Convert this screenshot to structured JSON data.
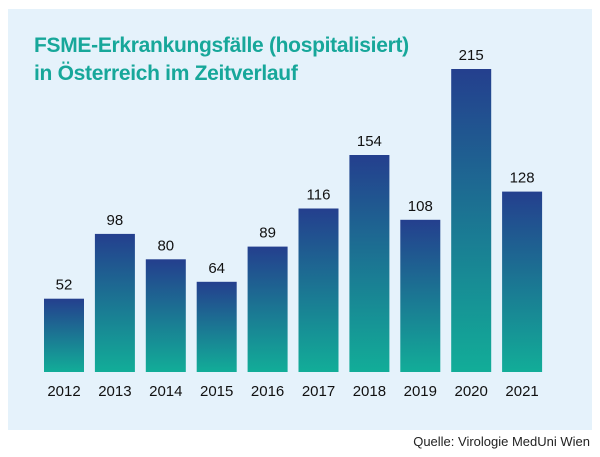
{
  "chart_data": {
    "type": "bar",
    "title_line1": "FSME-Erkrankungsfälle (hospitalisiert)",
    "title_line2": "in Österreich im Zeitverlauf",
    "categories": [
      "2012",
      "2013",
      "2014",
      "2015",
      "2016",
      "2017",
      "2018",
      "2019",
      "2020",
      "2021"
    ],
    "values": [
      52,
      98,
      80,
      64,
      89,
      116,
      154,
      108,
      215,
      128
    ],
    "xlabel": "",
    "ylabel": "",
    "ylim": [
      0,
      215
    ],
    "grid": false,
    "legend": "none",
    "colors": {
      "bar_top": "#243f8e",
      "bar_bottom": "#12ad98",
      "title": "#17a79a",
      "panel": "#e5f2fb"
    }
  },
  "source": "Quelle: Virologie MedUni Wien"
}
